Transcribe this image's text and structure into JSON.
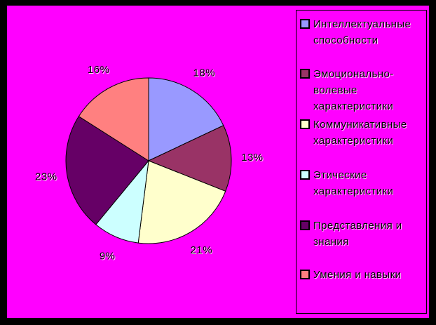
{
  "page": {
    "background": "#FF00FF",
    "frame_color": "#000000",
    "text_color": "#000000"
  },
  "chart_data": {
    "type": "pie",
    "title": "",
    "labels": [
      "Интеллектуальные способности",
      "Эмоционально-волевые характеристики",
      "Коммуникативные характеристики",
      "Этические характеристики",
      "Представления и знания",
      "Умения и навыки"
    ],
    "values": [
      18,
      13,
      21,
      9,
      23,
      16
    ],
    "percent_labels": [
      "18%",
      "13%",
      "21%",
      "9%",
      "23%",
      "16%"
    ],
    "unit": "%",
    "colors": [
      "#9999FF",
      "#993366",
      "#FFFFCC",
      "#CCFFFF",
      "#660066",
      "#FF8080"
    ],
    "start_angle_deg": 0,
    "direction": "clockwise",
    "legend_position": "right",
    "slice_outline": "#000000",
    "background": "#FF00FF"
  }
}
